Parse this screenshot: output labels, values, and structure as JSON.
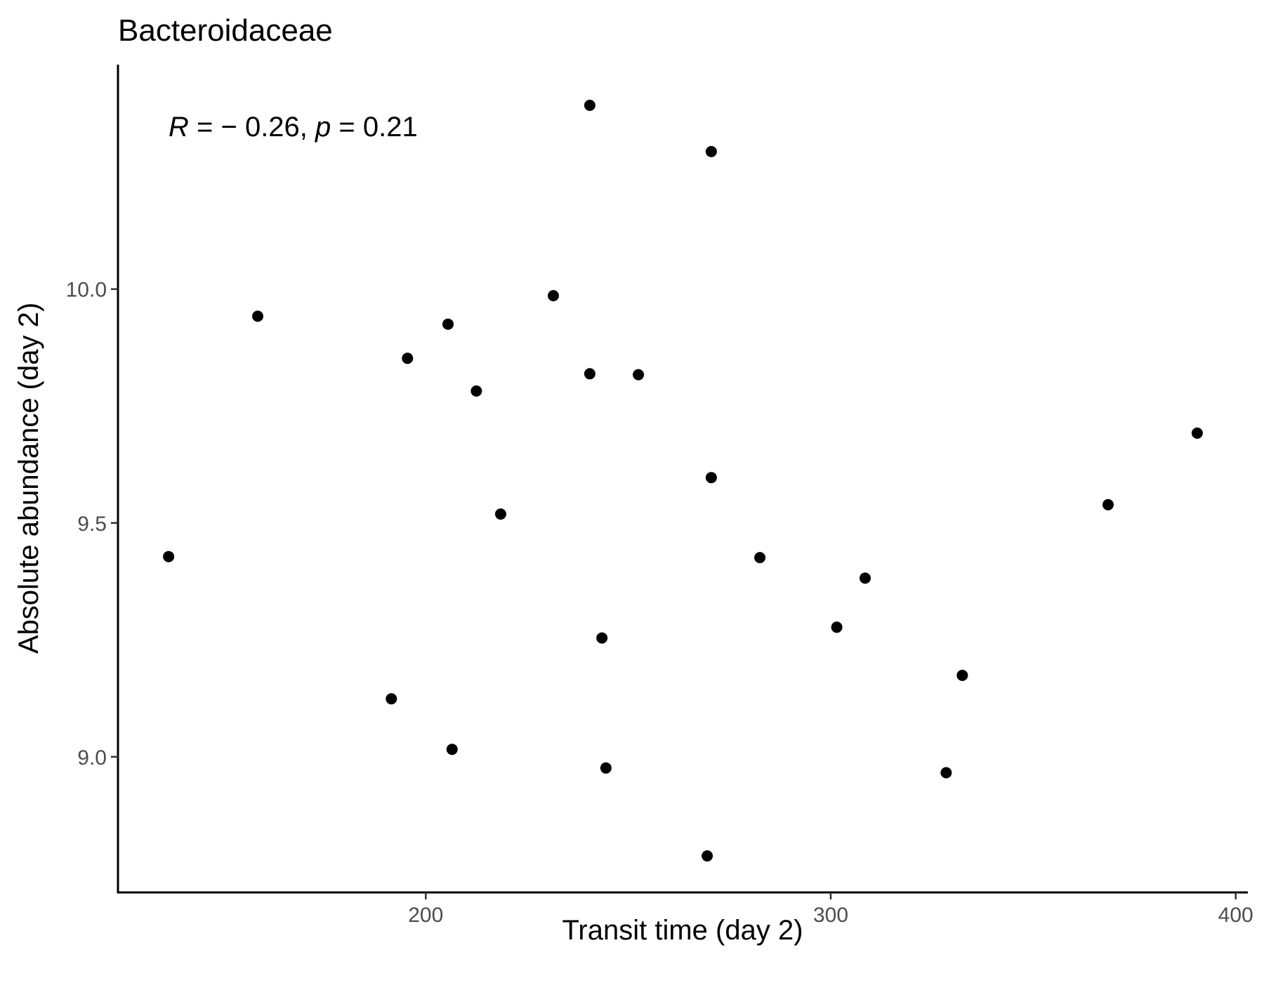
{
  "chart_data": {
    "type": "scatter",
    "title": "Bacteroidaceae",
    "xlabel": "Transit time (day 2)",
    "ylabel": "Absolute abundance (day 2)",
    "xlim": [
      124,
      403
    ],
    "ylim": [
      8.71,
      10.48
    ],
    "xticks": [
      200,
      300,
      400
    ],
    "xtick_labels": [
      "200",
      "300",
      "400"
    ],
    "yticks": [
      9.0,
      9.5,
      10.0
    ],
    "ytick_labels": [
      "9.0",
      "9.5",
      "10.0"
    ],
    "grid": false,
    "point_color": "#000000",
    "annotation": {
      "r_symbol": "R",
      "r_text": " = − 0.26, ",
      "p_symbol": "p",
      "p_text": " = 0.21"
    },
    "points": [
      {
        "x": 136.5,
        "y": 9.428
      },
      {
        "x": 158.5,
        "y": 9.942
      },
      {
        "x": 191.5,
        "y": 9.124
      },
      {
        "x": 195.5,
        "y": 9.852
      },
      {
        "x": 205.5,
        "y": 9.925
      },
      {
        "x": 206.5,
        "y": 9.016
      },
      {
        "x": 212.5,
        "y": 9.782
      },
      {
        "x": 218.5,
        "y": 9.519
      },
      {
        "x": 231.5,
        "y": 9.986
      },
      {
        "x": 240.5,
        "y": 10.393
      },
      {
        "x": 240.5,
        "y": 9.819
      },
      {
        "x": 243.5,
        "y": 9.254
      },
      {
        "x": 244.5,
        "y": 8.976
      },
      {
        "x": 252.5,
        "y": 9.817
      },
      {
        "x": 269.5,
        "y": 8.788
      },
      {
        "x": 270.5,
        "y": 10.294
      },
      {
        "x": 270.5,
        "y": 9.597
      },
      {
        "x": 282.5,
        "y": 9.426
      },
      {
        "x": 301.5,
        "y": 9.277
      },
      {
        "x": 308.5,
        "y": 9.382
      },
      {
        "x": 328.5,
        "y": 8.966
      },
      {
        "x": 332.5,
        "y": 9.174
      },
      {
        "x": 368.5,
        "y": 9.539
      },
      {
        "x": 390.5,
        "y": 9.692
      }
    ]
  }
}
